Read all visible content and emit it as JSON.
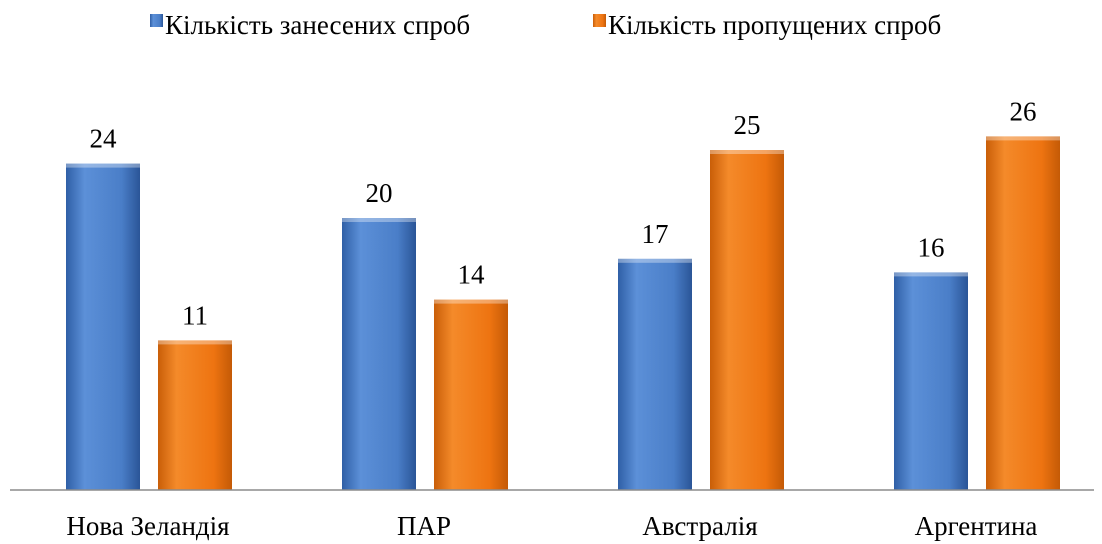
{
  "chart_data": {
    "type": "bar",
    "categories": [
      "Нова Зеландія",
      "ПАР",
      "Австралія",
      "Аргентина"
    ],
    "series": [
      {
        "name": "Кількість занесених спроб",
        "values": [
          24,
          20,
          17,
          16
        ],
        "color": "#4A7EC8"
      },
      {
        "name": "Кількість пропущених спроб",
        "values": [
          11,
          14,
          25,
          26
        ],
        "color": "#EE7411"
      }
    ],
    "data_labels": true,
    "legend_position": "top-center",
    "grid": false,
    "ylim": [
      0,
      30
    ]
  }
}
